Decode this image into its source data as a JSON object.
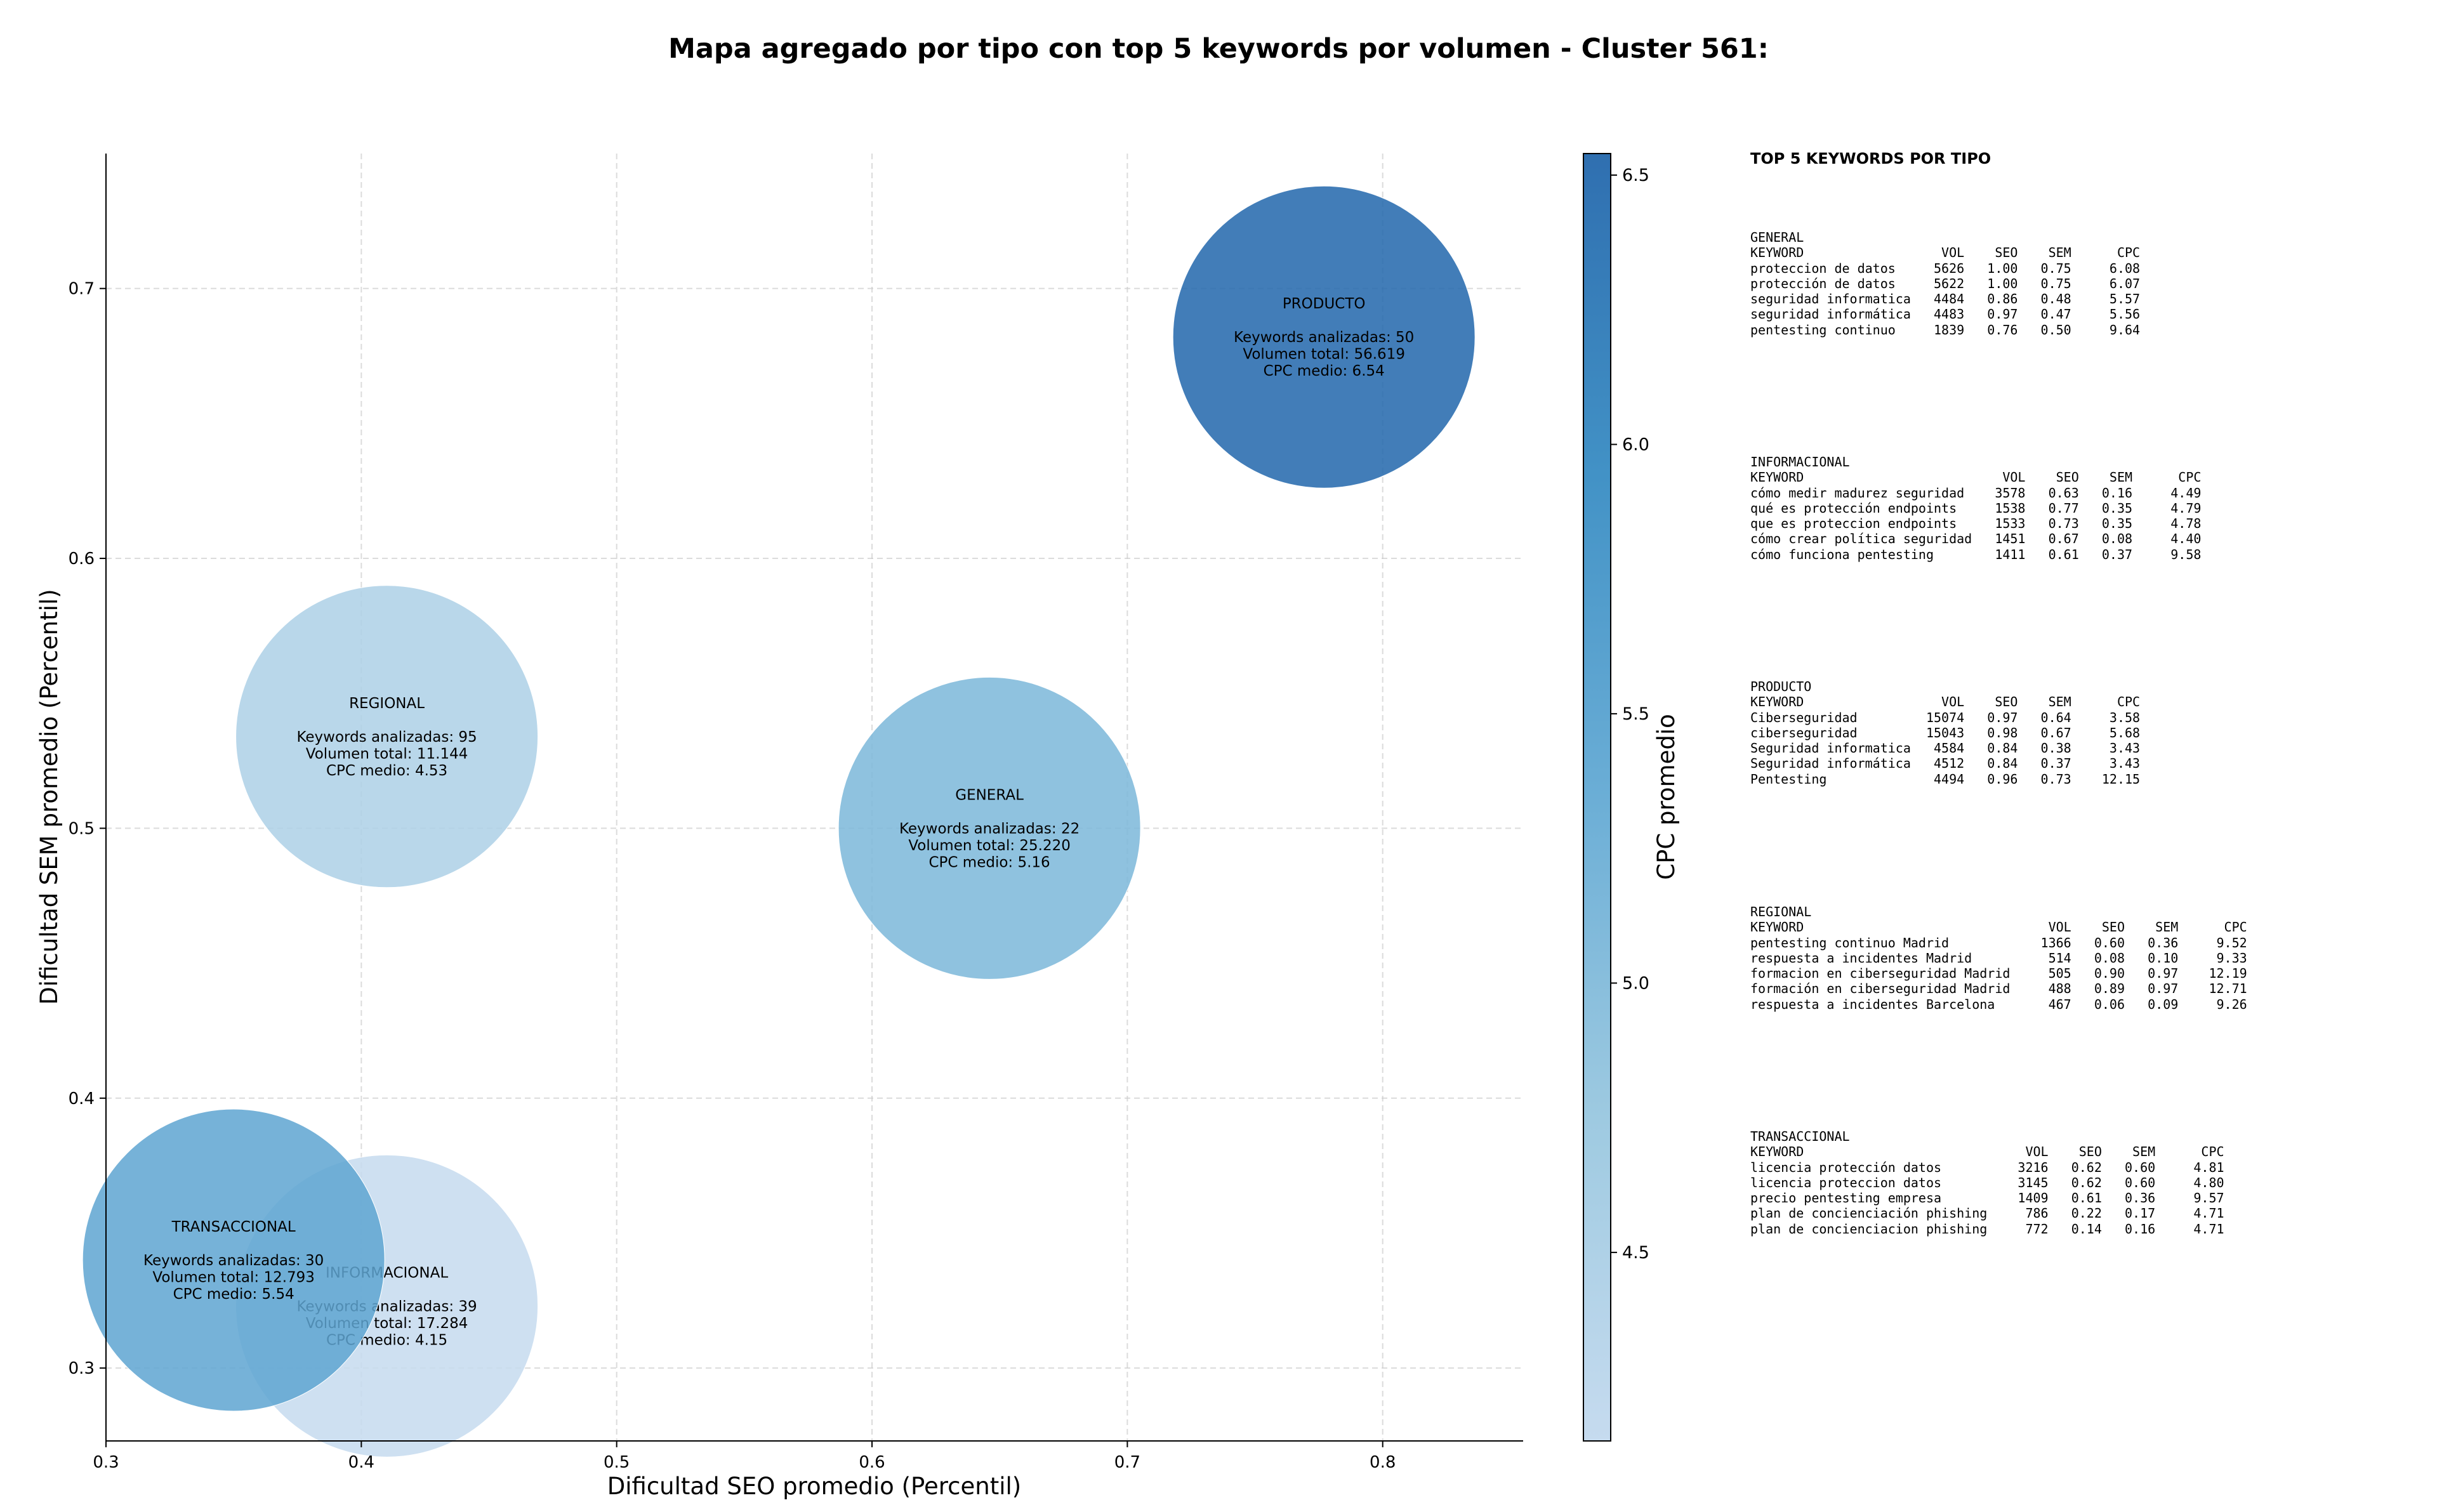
{
  "chart_data": {
    "type": "scatter",
    "title": "Mapa agregado por tipo con top 5 keywords por volumen - Cluster 561:",
    "xlabel": "Dificultad SEO promedio (Percentil)",
    "ylabel": "Dificultad SEM promedio (Percentil)",
    "xlim": [
      0.3,
      0.855
    ],
    "ylim": [
      0.273,
      0.75
    ],
    "xticks": [
      "0.3",
      "0.4",
      "0.5",
      "0.6",
      "0.7",
      "0.8"
    ],
    "yticks": [
      "0.3",
      "0.4",
      "0.5",
      "0.6",
      "0.7"
    ],
    "grid": true,
    "colorbar": {
      "label": "CPC promedio",
      "range": [
        4.15,
        6.54
      ],
      "ticks": [
        "4.5",
        "5.0",
        "5.5",
        "6.0",
        "6.5"
      ],
      "colormap": "Blues"
    },
    "points": [
      {
        "name": "PRODUCTO",
        "x": 0.777,
        "y": 0.682,
        "cpc": 6.54,
        "lines": [
          "Keywords analizadas: 50",
          "Volumen total: 56.619",
          "CPC medio: 6.54"
        ]
      },
      {
        "name": "REGIONAL",
        "x": 0.41,
        "y": 0.534,
        "cpc": 4.53,
        "lines": [
          "Keywords analizadas: 95",
          "Volumen total: 11.144",
          "CPC medio: 4.53"
        ]
      },
      {
        "name": "GENERAL",
        "x": 0.646,
        "y": 0.5,
        "cpc": 5.16,
        "lines": [
          "Keywords analizadas: 22",
          "Volumen total: 25.220",
          "CPC medio: 5.16"
        ]
      },
      {
        "name": "INFORMACIONAL",
        "x": 0.41,
        "y": 0.323,
        "cpc": 4.15,
        "lines": [
          "Keywords analizadas: 39",
          "Volumen total: 17.284",
          "CPC medio: 4.15"
        ]
      },
      {
        "name": "TRANSACCIONAL",
        "x": 0.35,
        "y": 0.34,
        "cpc": 5.54,
        "lines": [
          "Keywords analizadas: 30",
          "Volumen total: 12.793",
          "CPC medio: 5.54"
        ]
      }
    ]
  },
  "keyword_panel": {
    "heading": "TOP 5 KEYWORDS POR TIPO",
    "blocks": [
      {
        "text": "GENERAL\nKEYWORD                  VOL    SEO    SEM      CPC\nproteccion de datos     5626   1.00   0.75     6.08\nprotección de datos     5622   1.00   0.75     6.07\nseguridad informatica   4484   0.86   0.48     5.57\nseguridad informática   4483   0.97   0.47     5.56\npentesting continuo     1839   0.76   0.50     9.64"
      },
      {
        "text": "INFORMACIONAL\nKEYWORD                          VOL    SEO    SEM      CPC\ncómo medir madurez seguridad    3578   0.63   0.16     4.49\nqué es protección endpoints     1538   0.77   0.35     4.79\nque es proteccion endpoints     1533   0.73   0.35     4.78\ncómo crear política seguridad   1451   0.67   0.08     4.40\ncómo funciona pentesting        1411   0.61   0.37     9.58"
      },
      {
        "text": "PRODUCTO\nKEYWORD                  VOL    SEO    SEM      CPC\nCiberseguridad         15074   0.97   0.64     3.58\nciberseguridad         15043   0.98   0.67     5.68\nSeguridad informatica   4584   0.84   0.38     3.43\nSeguridad informática   4512   0.84   0.37     3.43\nPentesting              4494   0.96   0.73    12.15"
      },
      {
        "text": "REGIONAL\nKEYWORD                                VOL    SEO    SEM      CPC\npentesting continuo Madrid            1366   0.60   0.36     9.52\nrespuesta a incidentes Madrid          514   0.08   0.10     9.33\nformacion en ciberseguridad Madrid     505   0.90   0.97    12.19\nformación en ciberseguridad Madrid     488   0.89   0.97    12.71\nrespuesta a incidentes Barcelona       467   0.06   0.09     9.26"
      },
      {
        "text": "TRANSACCIONAL\nKEYWORD                             VOL    SEO    SEM      CPC\nlicencia protección datos          3216   0.62   0.60     4.81\nlicencia proteccion datos          3145   0.62   0.60     4.80\nprecio pentesting empresa          1409   0.61   0.36     9.57\nplan de concienciación phishing     786   0.22   0.17     4.71\nplan de concienciacion phishing     772   0.14   0.16     4.71"
      }
    ]
  }
}
